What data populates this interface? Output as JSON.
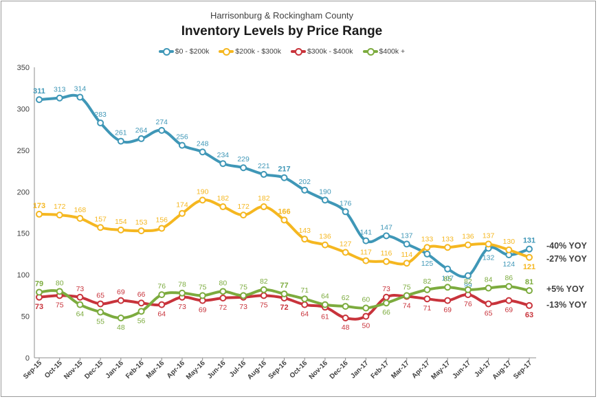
{
  "chart_data": {
    "type": "line",
    "subtitle": "Harrisonburg & Rockingham County",
    "title": "Inventory Levels by Price Range",
    "categories": [
      "Sep-15",
      "Oct-15",
      "Nov-15",
      "Dec-15",
      "Jan-16",
      "Feb-16",
      "Mar-16",
      "Apr-16",
      "May-16",
      "Jun-16",
      "Jul-16",
      "Aug-16",
      "Sep-16",
      "Oct-16",
      "Nov-16",
      "Dec-16",
      "Jan-17",
      "Feb-17",
      "Mar-17",
      "Apr-17",
      "May-17",
      "Jun-17",
      "Jul-17",
      "Aug-17",
      "Sep-17"
    ],
    "ylim": [
      0,
      350
    ],
    "yticks": [
      0,
      50,
      100,
      150,
      200,
      250,
      300,
      350
    ],
    "grid": false,
    "legend_position": "top",
    "series": [
      {
        "name": "$0 - $200k",
        "color": "#3f97b7",
        "values": [
          311,
          313,
          314,
          283,
          261,
          264,
          274,
          256,
          248,
          234,
          229,
          221,
          217,
          202,
          190,
          176,
          141,
          147,
          137,
          125,
          107,
          99,
          132,
          124,
          131
        ],
        "label_pos": [
          "a",
          "a",
          "a",
          "a",
          "a",
          "a",
          "a",
          "a",
          "a",
          "a",
          "a",
          "a",
          "a",
          "a",
          "a",
          "a",
          "a",
          "a",
          "a",
          "b",
          "b",
          "b",
          "b",
          "b",
          "a"
        ],
        "yoy": "-40% YOY"
      },
      {
        "name": "$200k - $300k",
        "color": "#f5b720",
        "values": [
          173,
          172,
          168,
          157,
          154,
          153,
          156,
          174,
          190,
          182,
          172,
          182,
          166,
          143,
          136,
          127,
          117,
          116,
          114,
          133,
          133,
          136,
          137,
          130,
          121
        ],
        "label_pos": [
          "a",
          "a",
          "a",
          "a",
          "a",
          "a",
          "a",
          "a",
          "a",
          "a",
          "a",
          "a",
          "a",
          "a",
          "a",
          "a",
          "a",
          "a",
          "a",
          "a",
          "a",
          "a",
          "a",
          "a",
          "b"
        ],
        "yoy": "-27% YOY"
      },
      {
        "name": "$300k - $400k",
        "color": "#c8333b",
        "values": [
          73,
          75,
          73,
          65,
          69,
          66,
          64,
          73,
          69,
          72,
          73,
          75,
          72,
          64,
          61,
          48,
          50,
          73,
          74,
          71,
          69,
          76,
          65,
          69,
          63
        ],
        "label_pos": [
          "b",
          "b",
          "a",
          "a",
          "a",
          "a",
          "b",
          "b",
          "b",
          "b",
          "b",
          "b",
          "b",
          "b",
          "b",
          "b",
          "b",
          "a",
          "b",
          "b",
          "b",
          "b",
          "b",
          "b",
          "b"
        ],
        "yoy": "-13% YOY"
      },
      {
        "name": "$400k +",
        "color": "#7cab3e",
        "values": [
          79,
          80,
          64,
          55,
          48,
          56,
          76,
          78,
          75,
          80,
          75,
          82,
          77,
          71,
          64,
          62,
          60,
          66,
          75,
          82,
          85,
          82,
          84,
          86,
          81
        ],
        "label_pos": [
          "a",
          "a",
          "b",
          "b",
          "b",
          "b",
          "a",
          "a",
          "a",
          "a",
          "a",
          "a",
          "a",
          "a",
          "a",
          "a",
          "a",
          "b",
          "a",
          "a",
          "a",
          "a",
          "a",
          "a",
          "a"
        ],
        "yoy": "+5% YOY"
      }
    ],
    "bold_points": [
      0,
      12,
      24
    ]
  }
}
